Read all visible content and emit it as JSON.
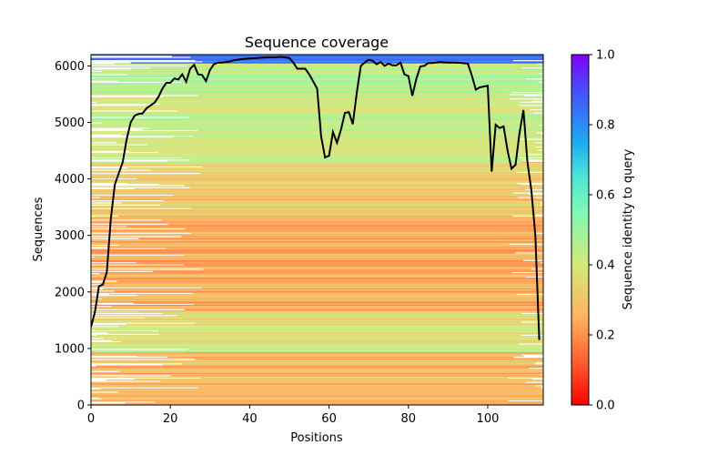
{
  "chart_data": {
    "type": "heatmap",
    "title": "Sequence coverage",
    "xlabel": "Positions",
    "ylabel": "Sequences",
    "xlim": [
      0,
      114
    ],
    "ylim": [
      0,
      6200
    ],
    "x_ticks": [
      0,
      20,
      40,
      60,
      80,
      100
    ],
    "y_ticks": [
      0,
      1000,
      2000,
      3000,
      4000,
      5000,
      6000
    ],
    "colorbar": {
      "label": "Sequence identity to query",
      "colormap": "rainbow_r",
      "range": [
        0,
        1
      ],
      "ticks": [
        "0.0",
        "0.2",
        "0.4",
        "0.6",
        "0.8",
        "1.0"
      ]
    },
    "identity_bands": [
      {
        "y_from": 0,
        "y_to": 950,
        "identity": 0.27
      },
      {
        "y_from": 950,
        "y_to": 1650,
        "identity": 0.38
      },
      {
        "y_from": 1650,
        "y_to": 3300,
        "identity": 0.24
      },
      {
        "y_from": 3300,
        "y_to": 4300,
        "identity": 0.3
      },
      {
        "y_from": 4300,
        "y_to": 5600,
        "identity": 0.42
      },
      {
        "y_from": 5600,
        "y_to": 6050,
        "identity": 0.45
      },
      {
        "y_from": 6050,
        "y_to": 6200,
        "identity": 0.85
      }
    ],
    "series": [
      {
        "type": "line",
        "color": "#000000",
        "x": [
          0,
          1,
          2,
          3,
          4,
          5,
          6,
          7,
          8,
          9,
          10,
          11,
          12,
          13,
          14,
          15,
          16,
          17,
          18,
          19,
          20,
          21,
          22,
          23,
          24,
          25,
          26,
          27,
          28,
          29,
          30,
          31,
          32,
          33,
          34,
          35,
          36,
          38,
          40,
          42,
          44,
          46,
          48,
          50,
          51,
          52,
          54,
          55,
          57,
          58,
          59,
          60,
          61,
          62,
          63,
          64,
          65,
          66,
          67,
          68,
          69,
          70,
          71,
          72,
          73,
          74,
          75,
          76,
          77,
          78,
          79,
          80,
          81,
          82,
          83,
          84,
          85,
          86,
          88,
          90,
          92,
          95,
          96,
          97,
          98,
          100,
          101,
          102,
          103,
          104,
          105,
          106,
          107,
          108,
          109,
          110,
          111,
          112,
          113
        ],
        "y": [
          1380,
          1650,
          2100,
          2130,
          2350,
          3300,
          3900,
          4100,
          4300,
          4700,
          5000,
          5120,
          5150,
          5160,
          5250,
          5300,
          5350,
          5450,
          5600,
          5700,
          5700,
          5780,
          5760,
          5850,
          5720,
          5950,
          6020,
          5850,
          5840,
          5730,
          5930,
          6030,
          6060,
          6060,
          6070,
          6080,
          6100,
          6120,
          6130,
          6140,
          6150,
          6150,
          6160,
          6140,
          6060,
          5950,
          5950,
          5850,
          5600,
          4750,
          4380,
          4410,
          4830,
          4640,
          4870,
          5170,
          5180,
          4970,
          5530,
          6000,
          6060,
          6110,
          6090,
          6030,
          6070,
          6000,
          6040,
          6010,
          6010,
          6060,
          5850,
          5820,
          5470,
          5770,
          5990,
          6000,
          6050,
          6050,
          6070,
          6060,
          6060,
          6040,
          5830,
          5580,
          5620,
          5650,
          4130,
          4960,
          4900,
          4930,
          4500,
          4180,
          4250,
          4800,
          5220,
          4300,
          3800,
          3000,
          1150
        ]
      }
    ]
  }
}
